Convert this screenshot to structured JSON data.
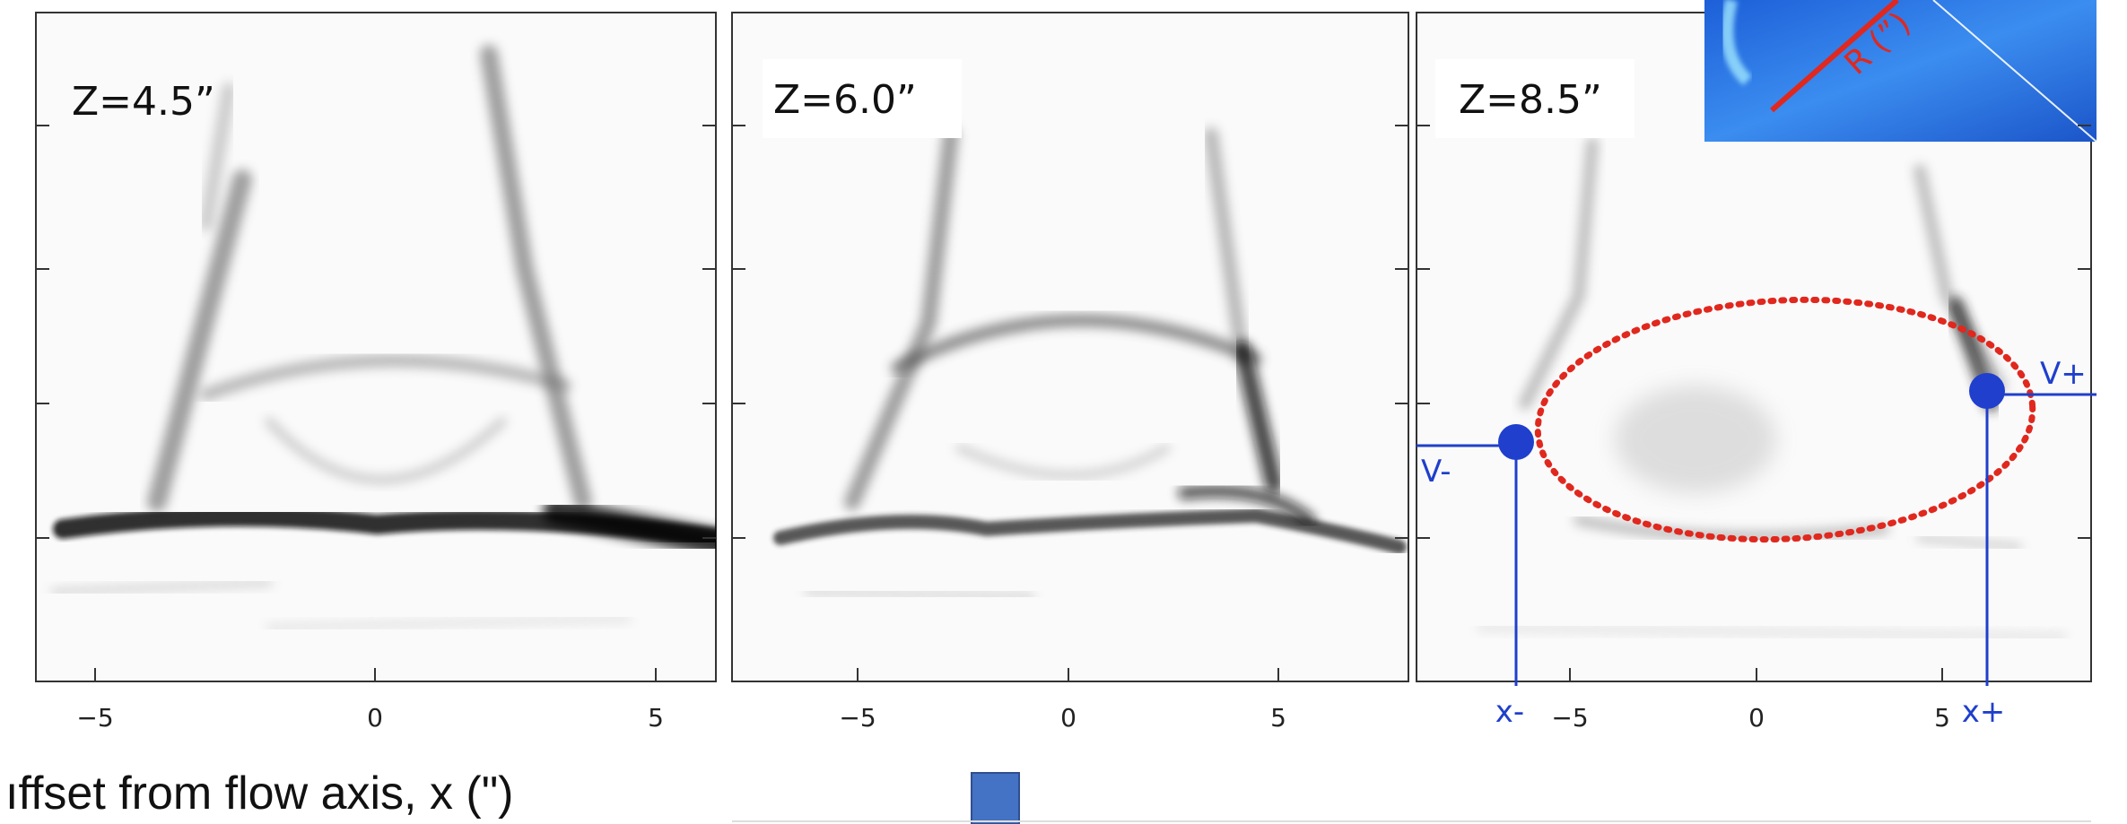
{
  "panels": [
    {
      "label": "Z=4.5”",
      "ticks": [
        "−5",
        "0",
        "5"
      ]
    },
    {
      "label": "Z=6.0”",
      "ticks": [
        "−5",
        "0",
        "5"
      ]
    },
    {
      "label": "Z=8.5”",
      "ticks": [
        "−5",
        "0",
        "5"
      ]
    }
  ],
  "annotations": {
    "v_minus": "V-",
    "v_plus": "V+",
    "x_minus": "x-",
    "x_plus": "x+",
    "inset_label": "R (”)"
  },
  "xaxis_label": "ıffset from flow axis, x (\")",
  "colors": {
    "annotation_blue": "#1f3fcc",
    "ellipse_red": "#e0281e",
    "inset_blue": "#2f7be8"
  }
}
